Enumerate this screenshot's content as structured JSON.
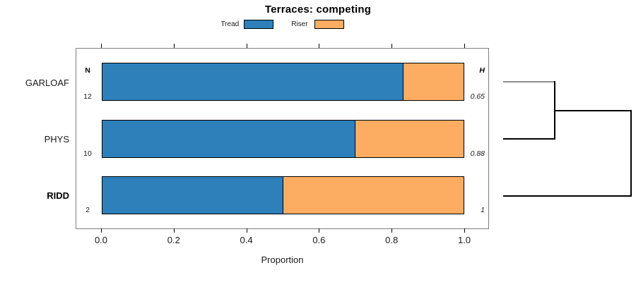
{
  "figure": {
    "title": "Terraces: competing"
  },
  "chart_data": {
    "type": "bar",
    "variant": "horizontal_stacked_proportion",
    "title": "Terraces: competing",
    "xlabel": "Proportion",
    "ylabel": "",
    "xlim": [
      0,
      1
    ],
    "x_ticks": [
      "0.0",
      "0.2",
      "0.4",
      "0.6",
      "0.8",
      "1.0"
    ],
    "grid": false,
    "legend_position": "top-center",
    "categories": [
      "GARLOAF",
      "PHYS",
      "RIDD"
    ],
    "emphasized_category": "RIDD",
    "series": [
      {
        "name": "Tread",
        "color": "#2E80BB",
        "values": [
          0.833,
          0.7,
          0.5
        ]
      },
      {
        "name": "Riser",
        "color": "#FCAD62",
        "values": [
          0.167,
          0.3,
          0.5
        ]
      }
    ],
    "n_column": {
      "header": "N",
      "values": [
        "12",
        "10",
        "2"
      ]
    },
    "h_column": {
      "header": "H",
      "values": [
        "0.65",
        "0.88",
        "1"
      ]
    },
    "dendrogram": {
      "position": "right",
      "merges": [
        {
          "members": [
            "GARLOAF",
            "PHYS"
          ],
          "order": 1
        },
        {
          "members": [
            "GARLOAF+PHYS",
            "RIDD"
          ],
          "order": 2
        }
      ]
    }
  }
}
